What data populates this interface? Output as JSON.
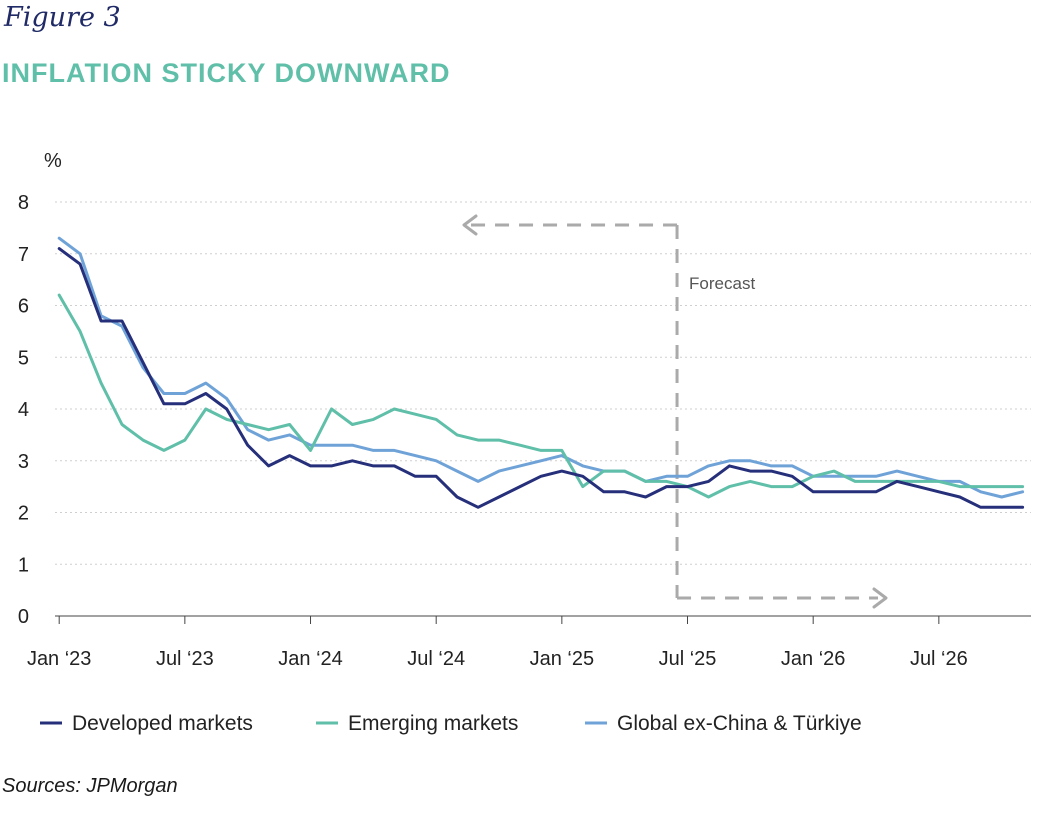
{
  "figure": {
    "label": "Figure 3",
    "title": "INFLATION STICKY DOWNWARD",
    "source": "Sources: JPMorgan"
  },
  "colors": {
    "developed": "#262f7a",
    "emerging": "#5fbfa8",
    "global": "#6fa3d8",
    "grid": "#cfcfcf",
    "forecast": "#aaaaaa"
  },
  "chart_data": {
    "type": "line",
    "title": "INFLATION STICKY DOWNWARD",
    "xlabel": "",
    "ylabel": "%",
    "ylim": [
      0,
      8
    ],
    "yticks": [
      "0",
      "1",
      "2",
      "3",
      "4",
      "5",
      "6",
      "7",
      "8"
    ],
    "grid": true,
    "x_tick_labels": [
      "Jan ‘23",
      "Jul ‘23",
      "Jan ‘24",
      "Jul ‘24",
      "Jan ‘25",
      "Jul ‘25",
      "Jan ‘26",
      "Jul ‘26"
    ],
    "x_tick_months": [
      0,
      6,
      12,
      18,
      24,
      30,
      36,
      42
    ],
    "x_range_months": [
      -0.2,
      46.4
    ],
    "forecast": {
      "label": "Forecast",
      "start_month": 29.5
    },
    "legend_position": "bottom",
    "series": [
      {
        "name": "Developed markets",
        "color_key": "developed",
        "months": [
          0,
          1,
          2,
          3,
          4,
          5,
          6,
          7,
          8,
          9,
          10,
          11,
          12,
          13,
          14,
          15,
          16,
          17,
          18,
          19,
          20,
          21,
          22,
          23,
          24,
          25,
          26,
          27,
          28,
          29,
          30,
          31,
          32,
          33,
          34,
          35,
          36,
          37,
          38,
          39,
          40,
          41,
          42,
          43,
          44,
          45,
          46
        ],
        "values": [
          7.1,
          6.8,
          5.7,
          5.7,
          4.9,
          4.1,
          4.1,
          4.3,
          4.0,
          3.3,
          2.9,
          3.1,
          2.9,
          2.9,
          3.0,
          2.9,
          2.9,
          2.7,
          2.7,
          2.3,
          2.1,
          2.3,
          2.5,
          2.7,
          2.8,
          2.7,
          2.4,
          2.4,
          2.3,
          2.5,
          2.5,
          2.6,
          2.9,
          2.8,
          2.8,
          2.7,
          2.4,
          2.4,
          2.4,
          2.4,
          2.6,
          2.5,
          2.4,
          2.3,
          2.1,
          2.1,
          2.1
        ]
      },
      {
        "name": "Emerging markets",
        "color_key": "emerging",
        "months": [
          0,
          1,
          2,
          3,
          4,
          5,
          6,
          7,
          8,
          9,
          10,
          11,
          12,
          13,
          14,
          15,
          16,
          17,
          18,
          19,
          20,
          21,
          22,
          23,
          24,
          25,
          26,
          27,
          28,
          29,
          30,
          31,
          32,
          33,
          34,
          35,
          36,
          37,
          38,
          39,
          40,
          41,
          42,
          43,
          44,
          45,
          46
        ],
        "values": [
          6.2,
          5.5,
          4.5,
          3.7,
          3.4,
          3.2,
          3.4,
          4.0,
          3.8,
          3.7,
          3.6,
          3.7,
          3.2,
          4.0,
          3.7,
          3.8,
          4.0,
          3.9,
          3.8,
          3.5,
          3.4,
          3.4,
          3.3,
          3.2,
          3.2,
          2.5,
          2.8,
          2.8,
          2.6,
          2.6,
          2.5,
          2.3,
          2.5,
          2.6,
          2.5,
          2.5,
          2.7,
          2.8,
          2.6,
          2.6,
          2.6,
          2.6,
          2.6,
          2.5,
          2.5,
          2.5,
          2.5
        ]
      },
      {
        "name": "Global ex-China & Türkiye",
        "color_key": "global",
        "months": [
          0,
          1,
          2,
          3,
          4,
          5,
          6,
          7,
          8,
          9,
          10,
          11,
          12,
          13,
          14,
          15,
          16,
          17,
          18,
          19,
          20,
          21,
          22,
          23,
          24,
          25,
          26,
          27,
          28,
          29,
          30,
          31,
          32,
          33,
          34,
          35,
          36,
          37,
          38,
          39,
          40,
          41,
          42,
          43,
          44,
          45,
          46
        ],
        "values": [
          7.3,
          7.0,
          5.8,
          5.6,
          4.8,
          4.3,
          4.3,
          4.5,
          4.2,
          3.6,
          3.4,
          3.5,
          3.3,
          3.3,
          3.3,
          3.2,
          3.2,
          3.1,
          3.0,
          2.8,
          2.6,
          2.8,
          2.9,
          3.0,
          3.1,
          2.9,
          2.8,
          2.8,
          2.6,
          2.7,
          2.7,
          2.9,
          3.0,
          3.0,
          2.9,
          2.9,
          2.7,
          2.7,
          2.7,
          2.7,
          2.8,
          2.7,
          2.6,
          2.6,
          2.4,
          2.3,
          2.4
        ]
      }
    ]
  }
}
